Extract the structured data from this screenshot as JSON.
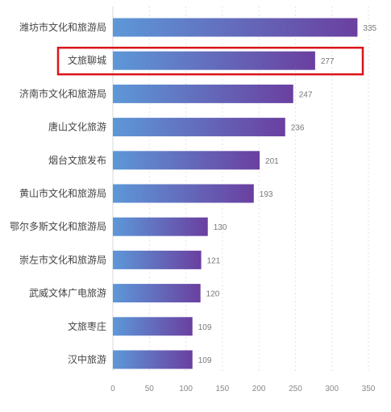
{
  "chart_data": {
    "type": "bar",
    "orientation": "horizontal",
    "categories": [
      "潍坊市文化和旅游局",
      "文旅聊城",
      "济南市文化和旅游局",
      "唐山文化旅游",
      "烟台文旅发布",
      "黄山市文化和旅游局",
      "鄂尔多斯文化和旅游局",
      "崇左市文化和旅游局",
      "武威文体广电旅游",
      "文旅枣庄",
      "汉中旅游"
    ],
    "values": [
      335,
      277,
      247,
      236,
      201,
      193,
      130,
      121,
      120,
      109,
      109
    ],
    "value_labels": [
      "335",
      "277",
      "247",
      "236",
      "201",
      "193",
      "130",
      "121",
      "120",
      "109",
      "109"
    ],
    "x_ticks": [
      "0",
      "50",
      "100",
      "150",
      "200",
      "250",
      "300",
      "350"
    ],
    "xlim": [
      0,
      350
    ],
    "grid": "vertical dashed",
    "highlighted_category": "文旅聊城",
    "highlight_color": "#d9141b",
    "bar_gradient": [
      "#5d98d8",
      "#6a3fa0"
    ]
  }
}
